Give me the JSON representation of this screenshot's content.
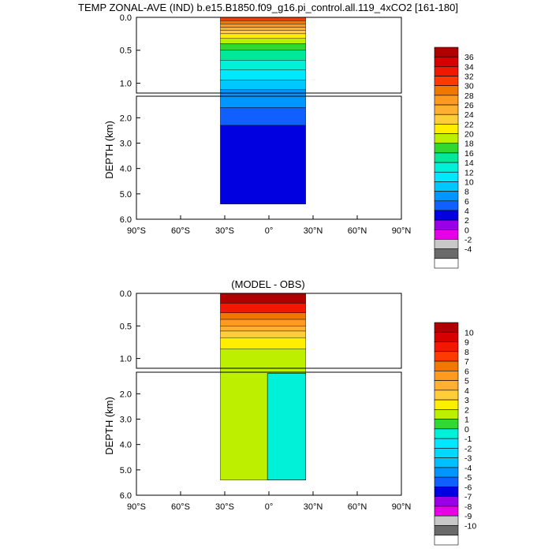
{
  "chart_data": [
    {
      "type": "heatmap",
      "title": "TEMP ZONAL-AVE (IND) b.e15.B1850.f09_g16.pi_control.all.119_4xCO2 [161-180]",
      "xlabel": "",
      "ylabel": "DEPTH (km)",
      "xlim": [
        -90,
        90
      ],
      "ylim": [
        6.0,
        0.0
      ],
      "x_ticks": [
        "90°S",
        "60°S",
        "30°S",
        "0°",
        "30°N",
        "60°N",
        "90°N"
      ],
      "upper_y_ticks": [
        "0.0",
        "0.5",
        "1.0"
      ],
      "lower_y_ticks": [
        "2.0",
        "3.0",
        "4.0",
        "5.0",
        "6.0"
      ],
      "data_extent": {
        "lat_min": -33,
        "lat_max": 25,
        "max_depth_km": 5.4
      },
      "colorbar": {
        "labels": [
          "36",
          "34",
          "32",
          "30",
          "28",
          "26",
          "24",
          "22",
          "20",
          "18",
          "16",
          "14",
          "12",
          "10",
          "8",
          "6",
          "4",
          "2",
          "0",
          "-2",
          "-4"
        ],
        "colors": [
          "#b00000",
          "#d60000",
          "#f01800",
          "#ff3a00",
          "#f07800",
          "#ff9a20",
          "#ffb030",
          "#ffcc3a",
          "#ffee00",
          "#bdf000",
          "#30d830",
          "#00e898",
          "#00f0d8",
          "#00e8ff",
          "#00c8ff",
          "#0096ff",
          "#1060ff",
          "#0000e0",
          "#9a00e8",
          "#e600e6",
          "#c8c8c8",
          "#6a6a6a",
          "#ffffff"
        ]
      },
      "profile": [
        {
          "depth_km": 0.0,
          "value": 30
        },
        {
          "depth_km": 0.05,
          "value": 28
        },
        {
          "depth_km": 0.1,
          "value": 26
        },
        {
          "depth_km": 0.15,
          "value": 24
        },
        {
          "depth_km": 0.2,
          "value": 22
        },
        {
          "depth_km": 0.25,
          "value": 20
        },
        {
          "depth_km": 0.32,
          "value": 18
        },
        {
          "depth_km": 0.4,
          "value": 16
        },
        {
          "depth_km": 0.5,
          "value": 14
        },
        {
          "depth_km": 0.65,
          "value": 12
        },
        {
          "depth_km": 0.8,
          "value": 10
        },
        {
          "depth_km": 0.95,
          "value": 8
        },
        {
          "depth_km": 1.1,
          "value": 6
        },
        {
          "depth_km": 1.6,
          "value": 4
        },
        {
          "depth_km": 2.3,
          "value": 2
        },
        {
          "depth_km": 5.4,
          "value": 0
        }
      ]
    },
    {
      "type": "heatmap",
      "title": "(MODEL - OBS)",
      "xlabel": "",
      "ylabel": "DEPTH (km)",
      "xlim": [
        -90,
        90
      ],
      "ylim": [
        6.0,
        0.0
      ],
      "x_ticks": [
        "90°S",
        "60°S",
        "30°S",
        "0°",
        "30°N",
        "60°N",
        "90°N"
      ],
      "upper_y_ticks": [
        "0.0",
        "0.5",
        "1.0"
      ],
      "lower_y_ticks": [
        "2.0",
        "3.0",
        "4.0",
        "5.0",
        "6.0"
      ],
      "data_extent": {
        "lat_min": -33,
        "lat_max": 25,
        "max_depth_km": 5.4
      },
      "colorbar": {
        "labels": [
          "10",
          "9",
          "8",
          "7",
          "6",
          "5",
          "4",
          "3",
          "2",
          "1",
          "0",
          "-1",
          "-2",
          "-3",
          "-4",
          "-5",
          "-6",
          "-7",
          "-8",
          "-9",
          "-10"
        ],
        "colors": [
          "#b00000",
          "#d60000",
          "#f01800",
          "#ff3a00",
          "#f07800",
          "#ff9a20",
          "#ffb030",
          "#ffcc3a",
          "#ffee00",
          "#bdf000",
          "#30d830",
          "#00f0d8",
          "#00e8ff",
          "#00d8ff",
          "#00c0ff",
          "#0096ff",
          "#1060ff",
          "#0000e0",
          "#9a00e8",
          "#e600e6",
          "#c8c8c8",
          "#6a6a6a",
          "#ffffff"
        ]
      },
      "profile": [
        {
          "depth_km": 0.0,
          "value": 10
        },
        {
          "depth_km": 0.15,
          "value": 8
        },
        {
          "depth_km": 0.3,
          "value": 6
        },
        {
          "depth_km": 0.4,
          "value": 5
        },
        {
          "depth_km": 0.5,
          "value": 4
        },
        {
          "depth_km": 0.58,
          "value": 3
        },
        {
          "depth_km": 0.68,
          "value": 2
        },
        {
          "depth_km": 0.85,
          "value": 1
        },
        {
          "depth_km": 5.4,
          "value": 0.5
        }
      ],
      "east_region": {
        "lat_min": -1,
        "depth_min_km": 1.2,
        "value": -0.5
      }
    }
  ]
}
